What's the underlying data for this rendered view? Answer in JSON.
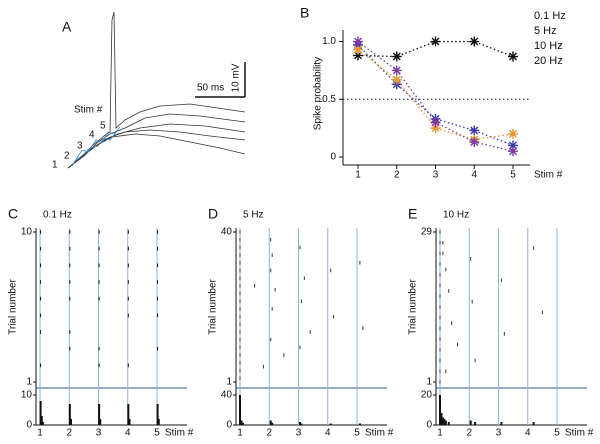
{
  "panel_a": {
    "label": "A",
    "scale_y": "10 mV",
    "scale_x": "50 ms",
    "stim_label": "Stim #",
    "stim_numbers": [
      "1",
      "2",
      "3",
      "4",
      "5"
    ]
  },
  "chart_data": [
    {
      "type": "line",
      "panel_label": "B",
      "ylabel": "Spike probability",
      "xlabel": "Stim #",
      "categories": [
        "1",
        "2",
        "3",
        "4",
        "5"
      ],
      "ylim": [
        0,
        1.1
      ],
      "yticks": [
        0,
        0.5,
        {
          "value": 1,
          "label": "1.0"
        }
      ],
      "reference_line": 0.5,
      "series": [
        {
          "name": "0.1 Hz",
          "color": "#111111",
          "values": [
            0.88,
            0.87,
            1.0,
            1.0,
            0.87
          ]
        },
        {
          "name": "5 Hz",
          "color": "#3a3aa8",
          "values": [
            0.97,
            0.63,
            0.33,
            0.23,
            0.1
          ]
        },
        {
          "name": "10 Hz",
          "color": "#e8962e",
          "values": [
            0.93,
            0.67,
            0.25,
            0.15,
            0.2
          ]
        },
        {
          "name": "20 Hz",
          "color": "#7b3c9e",
          "values": [
            1.0,
            0.75,
            0.3,
            0.13,
            0.05
          ]
        }
      ]
    },
    {
      "type": "raster",
      "panel_label": "C",
      "title": "0.1 Hz",
      "ylabel": "Trial number",
      "xlabel": "Stim #",
      "categories": [
        "1",
        "2",
        "3",
        "4",
        "5"
      ],
      "ylim": [
        1,
        10
      ],
      "yticks": [
        1,
        10
      ],
      "color": "#111111",
      "spikes": {
        "x": [
          1.02,
          1.02,
          1.02,
          1.02,
          1.02,
          1.02,
          1.02,
          1.02,
          2.02,
          2.02,
          2.02,
          2.02,
          2.02,
          2.02,
          2.02,
          3.02,
          3.02,
          3.02,
          3.02,
          3.02,
          3.02,
          3.02,
          4.02,
          4.02,
          4.02,
          4.02,
          4.02,
          4.02,
          4.02,
          5.02,
          5.02,
          5.02,
          5.02,
          5.02,
          5.02,
          5.02
        ],
        "y": [
          2,
          4,
          5,
          6,
          7,
          8,
          9,
          10,
          3,
          4,
          6,
          7,
          8,
          9,
          10,
          2,
          3,
          6,
          7,
          8,
          9,
          10,
          2,
          5,
          6,
          7,
          8,
          9,
          10,
          3,
          5,
          6,
          7,
          8,
          9,
          10
        ]
      },
      "histogram": {
        "x": [
          1.02,
          1.06,
          1.1,
          2.02,
          2.06,
          3.02,
          3.06,
          4.02,
          4.06,
          5.02,
          5.06
        ],
        "values": [
          8,
          3,
          1,
          7,
          2,
          7,
          2,
          7,
          2,
          7,
          2
        ],
        "ylim": [
          0,
          10
        ],
        "yticks": [
          0,
          10
        ]
      }
    },
    {
      "type": "raster",
      "panel_label": "D",
      "title": "5 Hz",
      "ylabel": "Trial number",
      "xlabel": "Stim #",
      "categories": [
        "1",
        "2",
        "3",
        "4",
        "5"
      ],
      "ylim": [
        1,
        40
      ],
      "yticks": [
        1,
        40
      ],
      "color": "#333333",
      "spikes": {
        "x": [
          1.0,
          1.0,
          1.0,
          1.0,
          1.0,
          1.0,
          1.0,
          1.0,
          1.0,
          1.0,
          1.0,
          1.0,
          1.0,
          1.0,
          1.0,
          1.0,
          1.0,
          1.0,
          1.0,
          1.0,
          2.05,
          2.1,
          2.05,
          2.2,
          2.1,
          2.05,
          3.05,
          3.2,
          3.1,
          3.05,
          4.1,
          4.2,
          5.1,
          5.2,
          1.5,
          2.5,
          3.4,
          1.8
        ],
        "y": [
          2,
          4,
          6,
          8,
          10,
          12,
          14,
          16,
          18,
          20,
          22,
          24,
          26,
          28,
          30,
          32,
          34,
          36,
          38,
          40,
          38,
          34,
          30,
          25,
          20,
          12,
          36,
          28,
          22,
          10,
          30,
          18,
          32,
          15,
          26,
          8,
          14,
          5
        ]
      },
      "histogram": {
        "x": [
          1.0,
          1.05,
          1.1,
          2.05,
          2.1,
          3.05,
          3.1,
          4.1,
          5.1
        ],
        "values": [
          40,
          6,
          3,
          6,
          3,
          4,
          2,
          2,
          2
        ],
        "ylim": [
          0,
          40
        ],
        "yticks": [
          0,
          40
        ]
      }
    },
    {
      "type": "raster",
      "panel_label": "E",
      "title": "10 Hz",
      "ylabel": "Trial number",
      "xlabel": "Stim #",
      "categories": [
        "1",
        "2",
        "3",
        "4",
        "5"
      ],
      "ylim": [
        1,
        29
      ],
      "yticks": [
        1,
        29
      ],
      "color": "#333333",
      "spikes": {
        "x": [
          1.0,
          1.0,
          1.0,
          1.0,
          1.0,
          1.0,
          1.0,
          1.0,
          1.0,
          1.0,
          1.0,
          1.0,
          1.0,
          1.0,
          1.0,
          1.1,
          1.2,
          1.3,
          1.4,
          1.6,
          2.05,
          2.1,
          2.2,
          3.1,
          3.2,
          4.2,
          4.5,
          1.1,
          1.2
        ],
        "y": [
          1,
          3,
          5,
          7,
          9,
          11,
          13,
          15,
          17,
          19,
          21,
          23,
          25,
          27,
          29,
          27,
          22,
          18,
          12,
          8,
          24,
          16,
          5,
          20,
          10,
          26,
          14,
          25,
          3
        ]
      },
      "histogram": {
        "x": [
          1.0,
          1.05,
          1.1,
          1.15,
          1.2,
          1.3,
          2.05,
          2.2,
          3.1,
          4.2
        ],
        "values": [
          20,
          8,
          5,
          4,
          3,
          2,
          3,
          2,
          2,
          2
        ],
        "ylim": [
          0,
          20
        ],
        "yticks": [
          0,
          20
        ]
      }
    }
  ]
}
